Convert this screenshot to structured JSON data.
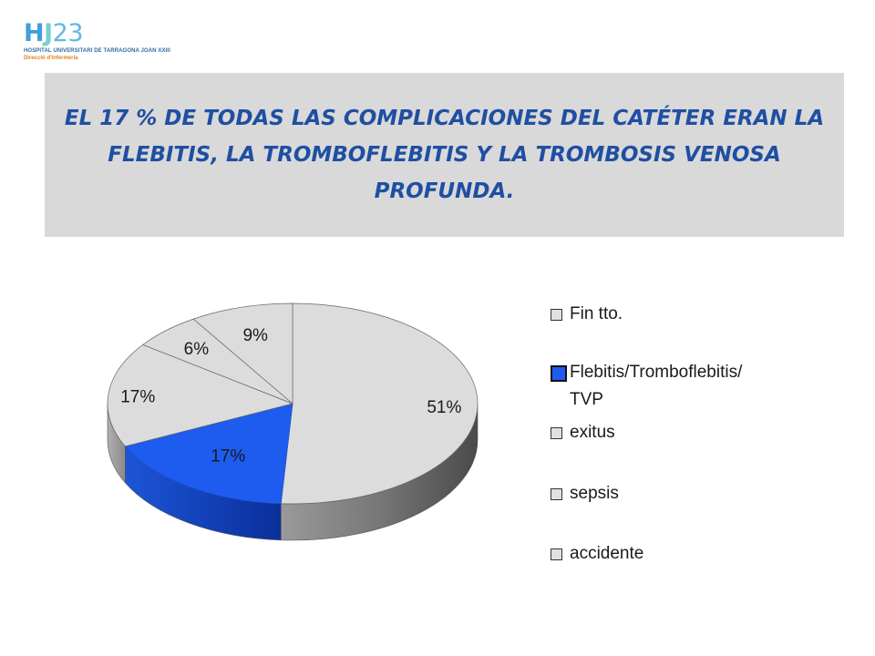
{
  "logo": {
    "mark_h": "H",
    "mark_j": "J",
    "mark_num": "23",
    "line1": "HOSPITAL UNIVERSITARI DE TARRAGONA JOAN XXIII",
    "line2": "Direcció d'Infermeria",
    "colors": {
      "blue": "#3f9edc",
      "teal": "#7ccfcf",
      "orange": "#e0821a"
    }
  },
  "title": "EL 17 % DE TODAS LAS COMPLICACIONES DEL CATÉTER ERAN LA FLEBITIS, LA TROMBOFLEBITIS Y LA TROMBOSIS VENOSA PROFUNDA.",
  "chart_data": {
    "type": "pie",
    "style": "3d",
    "title": "",
    "legend_position": "right",
    "slices": [
      {
        "label": "Fin tto.",
        "value": 51,
        "display": "51%",
        "color": "#dcdcdc"
      },
      {
        "label": "Flebitis/Tromboflebitis/ TVP",
        "value": 17,
        "display": "17%",
        "color": "#1e5cf0",
        "highlight": true
      },
      {
        "label": "exitus",
        "value": 17,
        "display": "17%",
        "color": "#dcdcdc"
      },
      {
        "label": "sepsis",
        "value": 6,
        "display": "6%",
        "color": "#dcdcdc"
      },
      {
        "label": "accidente",
        "value": 9,
        "display": "9%",
        "color": "#dcdcdc"
      }
    ],
    "legend": [
      {
        "label": "Fin tto."
      },
      {
        "label": "Flebitis/Tromboflebitis/",
        "label2": "TVP",
        "highlight": true
      },
      {
        "label": "exitus"
      },
      {
        "label": "sepsis"
      },
      {
        "label": "accidente"
      }
    ]
  }
}
